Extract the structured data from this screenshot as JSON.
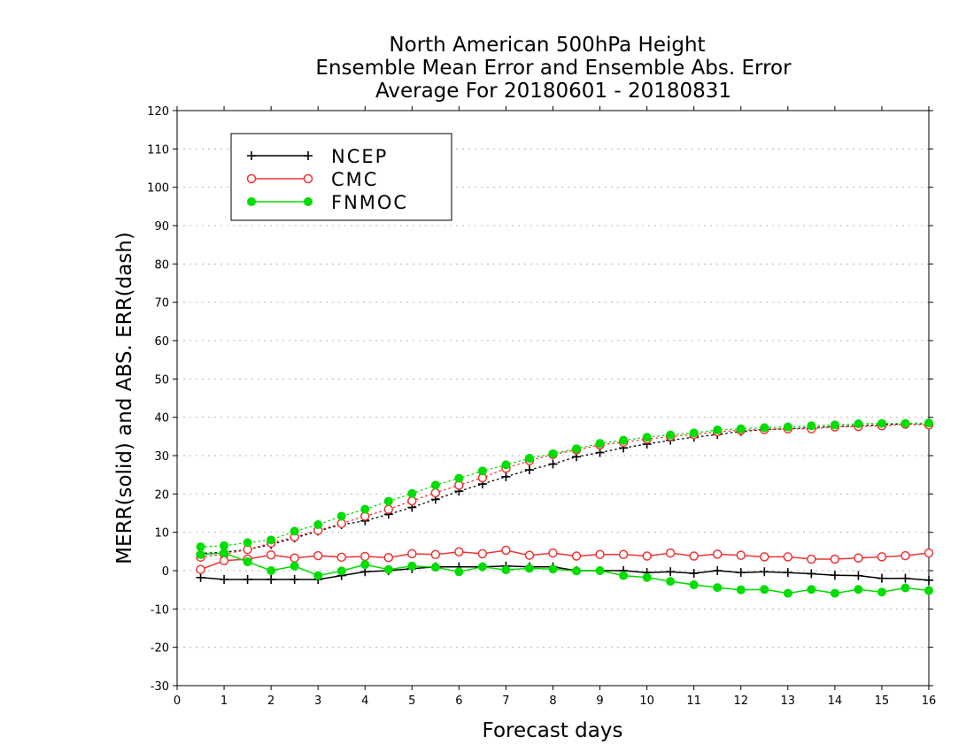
{
  "chart_data": {
    "type": "line",
    "title": [
      "North American 500hPa Height",
      "Ensemble Mean Error and Ensemble Abs. Error",
      "Average For 20180601 - 20180831"
    ],
    "xlabel": "Forecast days",
    "ylabel": "MERR(solid) and ABS. ERR(dash)",
    "xlim": [
      0,
      16
    ],
    "ylim": [
      -30,
      120
    ],
    "xticks": [
      0,
      1,
      2,
      3,
      4,
      5,
      6,
      7,
      8,
      9,
      10,
      11,
      12,
      13,
      14,
      15,
      16
    ],
    "yticks": [
      -30,
      -20,
      -10,
      0,
      10,
      20,
      30,
      40,
      50,
      60,
      70,
      80,
      90,
      100,
      110,
      120
    ],
    "grid": "horizontal dotted",
    "legend_position": "top-left",
    "x": [
      0.5,
      1,
      1.5,
      2,
      2.5,
      3,
      3.5,
      4,
      4.5,
      5,
      5.5,
      6,
      6.5,
      7,
      7.5,
      8,
      8.5,
      9,
      9.5,
      10,
      10.5,
      11,
      11.5,
      12,
      12.5,
      13,
      13.5,
      14,
      14.5,
      15,
      15.5,
      16
    ],
    "series": [
      {
        "name": "NCEP",
        "color": "#000000",
        "marker": "plus",
        "merr": [
          -1.8,
          -2.3,
          -2.3,
          -2.3,
          -2.3,
          -2.3,
          -1.3,
          -0.3,
          0,
          0.5,
          1,
          1,
          1,
          1.2,
          1,
          1,
          0,
          0,
          0,
          -0.5,
          -0.3,
          -0.7,
          0,
          -0.5,
          -0.3,
          -0.5,
          -0.8,
          -1.2,
          -1.3,
          -2,
          -2,
          -2.5
        ],
        "abs_err": [
          4.5,
          4.8,
          5.5,
          6.8,
          8.5,
          10.3,
          12,
          13,
          14.7,
          16.5,
          18.6,
          20.7,
          22.6,
          24.5,
          26.3,
          27.8,
          29.7,
          30.8,
          32,
          33,
          34,
          34.8,
          35.5,
          36.3,
          36.8,
          37,
          37.3,
          37.6,
          37.8,
          38,
          38.3,
          38.3
        ]
      },
      {
        "name": "CMC",
        "color": "#ee3333",
        "marker": "open-circle",
        "merr": [
          0.3,
          2.6,
          3,
          4.1,
          3.3,
          3.9,
          3.5,
          3.7,
          3.4,
          4.4,
          4.2,
          4.9,
          4.4,
          5.3,
          4,
          4.6,
          3.8,
          4.2,
          4.2,
          3.8,
          4.6,
          3.8,
          4.3,
          4,
          3.6,
          3.6,
          3,
          3,
          3.3,
          3.6,
          3.9,
          4.6
        ],
        "abs_err": [
          3.5,
          4.3,
          5.5,
          7.2,
          8.8,
          10.5,
          12.3,
          14.2,
          16,
          18.2,
          20.3,
          22.3,
          24.2,
          26.7,
          28.7,
          30.3,
          31.5,
          32.8,
          33.5,
          34.3,
          35,
          35.5,
          36.2,
          36.6,
          36.8,
          37,
          37,
          37.5,
          37.6,
          37.8,
          38.2,
          38
        ]
      },
      {
        "name": "FNMOC",
        "color": "#00dd00",
        "marker": "filled-circle",
        "merr": [
          4.2,
          4.6,
          2.3,
          0,
          1.2,
          -1.3,
          -0.1,
          1.6,
          0.3,
          1.2,
          0.9,
          -0.3,
          1,
          0.2,
          0.6,
          0.4,
          -0.1,
          0,
          -1.3,
          -1.8,
          -2.8,
          -3.7,
          -4.4,
          -5,
          -4.9,
          -5.9,
          -4.9,
          -5.9,
          -4.9,
          -5.6,
          -4.5,
          -5.2
        ],
        "abs_err": [
          6.2,
          6.5,
          7.3,
          8,
          10.3,
          12,
          14.2,
          16,
          18.1,
          20.1,
          22.3,
          24.1,
          26,
          27.6,
          29.3,
          30.5,
          31.8,
          33.2,
          34,
          34.8,
          35.4,
          35.9,
          36.7,
          37,
          37.3,
          37.5,
          37.8,
          38,
          38.3,
          38.4,
          38.4,
          38.5
        ]
      }
    ]
  }
}
